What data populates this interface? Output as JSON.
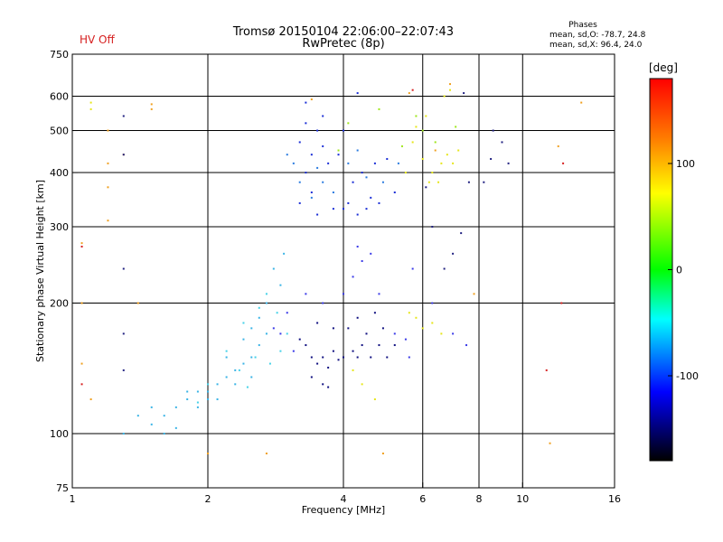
{
  "header": {
    "status_text": "HV Off",
    "title_line1": "Tromsø 20150104 22:06:00–22:07:43",
    "title_line2": "RwPretec (8p)",
    "phases": {
      "title": "Phases",
      "line_o": "mean, sd,O: -78.7, 24.8",
      "line_x": "mean, sd,X:  96.4, 24.0"
    }
  },
  "colors": {
    "status_text": "#d62020",
    "grid": "#000000",
    "colorbar": [
      "#ff0000",
      "#ffa500",
      "#ffff00",
      "#00ff00",
      "#00ffff",
      "#0000ff",
      "#000000"
    ]
  },
  "chart_data": {
    "type": "scatter",
    "xlabel": "Frequency [MHz]",
    "ylabel": "Stationary phase Virtual Height [km]",
    "x_scale": "log",
    "y_scale": "log",
    "xlim": [
      1,
      16
    ],
    "ylim": [
      75,
      750
    ],
    "x_ticks": [
      1,
      2,
      4,
      6,
      8,
      10,
      16
    ],
    "y_ticks": [
      75,
      100,
      200,
      300,
      400,
      500,
      600,
      750
    ],
    "grid": true,
    "colorbar": {
      "unit": "[deg]",
      "range": [
        -180,
        180
      ],
      "ticks": [
        100,
        0,
        -100
      ]
    },
    "series": [
      {
        "color": "#1a2ed6",
        "points": [
          [
            3.2,
            470
          ],
          [
            3.3,
            520
          ],
          [
            3.4,
            440
          ],
          [
            3.5,
            500
          ],
          [
            3.3,
            400
          ],
          [
            3.6,
            460
          ],
          [
            3.4,
            360
          ],
          [
            3.7,
            420
          ],
          [
            3.2,
            340
          ],
          [
            3.5,
            320
          ],
          [
            3.8,
            330
          ],
          [
            4.0,
            500
          ],
          [
            4.1,
            340
          ],
          [
            4.3,
            320
          ],
          [
            4.5,
            330
          ],
          [
            4.2,
            380
          ],
          [
            4.6,
            350
          ],
          [
            4.8,
            340
          ],
          [
            4.4,
            400
          ],
          [
            4.0,
            330
          ],
          [
            3.9,
            440
          ],
          [
            5.0,
            430
          ],
          [
            5.2,
            360
          ],
          [
            4.7,
            420
          ],
          [
            3.3,
            580
          ],
          [
            3.6,
            540
          ],
          [
            4.3,
            610
          ]
        ]
      },
      {
        "color": "#2a7be0",
        "points": [
          [
            3.1,
            420
          ],
          [
            3.2,
            380
          ],
          [
            3.4,
            350
          ],
          [
            3.6,
            380
          ],
          [
            3.8,
            360
          ],
          [
            4.1,
            420
          ],
          [
            4.3,
            450
          ],
          [
            4.5,
            390
          ],
          [
            4.9,
            380
          ],
          [
            5.3,
            420
          ],
          [
            3.0,
            440
          ],
          [
            3.5,
            410
          ]
        ]
      },
      {
        "color": "#101080",
        "points": [
          [
            3.3,
            160
          ],
          [
            3.4,
            150
          ],
          [
            3.5,
            145
          ],
          [
            3.6,
            150
          ],
          [
            3.7,
            142
          ],
          [
            3.8,
            155
          ],
          [
            3.4,
            135
          ],
          [
            3.6,
            130
          ],
          [
            3.7,
            128
          ],
          [
            3.2,
            165
          ],
          [
            3.9,
            148
          ],
          [
            4.0,
            150
          ],
          [
            4.2,
            155
          ],
          [
            4.3,
            150
          ],
          [
            4.4,
            160
          ],
          [
            4.6,
            150
          ],
          [
            4.8,
            160
          ],
          [
            5.0,
            150
          ],
          [
            5.2,
            160
          ],
          [
            4.1,
            175
          ],
          [
            4.5,
            170
          ],
          [
            4.3,
            185
          ],
          [
            4.7,
            190
          ],
          [
            4.9,
            175
          ],
          [
            3.8,
            175
          ],
          [
            3.5,
            180
          ]
        ]
      },
      {
        "color": "#3a3ae8",
        "points": [
          [
            3.3,
            210
          ],
          [
            3.6,
            200
          ],
          [
            4.0,
            210
          ],
          [
            4.2,
            230
          ],
          [
            4.4,
            250
          ],
          [
            4.6,
            260
          ],
          [
            4.8,
            210
          ],
          [
            5.2,
            170
          ],
          [
            5.5,
            165
          ],
          [
            5.6,
            150
          ],
          [
            4.3,
            270
          ],
          [
            5.7,
            240
          ],
          [
            6.3,
            200
          ],
          [
            7.0,
            170
          ],
          [
            7.5,
            160
          ],
          [
            2.8,
            175
          ],
          [
            3.1,
            155
          ],
          [
            3.0,
            190
          ],
          [
            2.9,
            170
          ]
        ]
      },
      {
        "color": "#3ab4e6",
        "points": [
          [
            1.5,
            105
          ],
          [
            1.6,
            110
          ],
          [
            1.7,
            115
          ],
          [
            1.8,
            120
          ],
          [
            1.9,
            115
          ],
          [
            2.0,
            125
          ],
          [
            2.1,
            130
          ],
          [
            2.2,
            135
          ],
          [
            2.3,
            140
          ],
          [
            2.4,
            145
          ],
          [
            2.5,
            150
          ],
          [
            2.6,
            160
          ],
          [
            2.7,
            170
          ],
          [
            2.2,
            150
          ],
          [
            2.4,
            165
          ],
          [
            2.6,
            185
          ],
          [
            2.7,
            200
          ],
          [
            2.9,
            220
          ],
          [
            2.5,
            175
          ],
          [
            2.3,
            130
          ],
          [
            2.0,
            120
          ],
          [
            1.8,
            125
          ],
          [
            1.6,
            100
          ],
          [
            1.7,
            103
          ],
          [
            1.3,
            100
          ],
          [
            1.4,
            110
          ],
          [
            1.5,
            115
          ],
          [
            1.9,
            125
          ],
          [
            2.1,
            120
          ],
          [
            2.8,
            240
          ],
          [
            2.95,
            260
          ],
          [
            2.5,
            135
          ]
        ]
      },
      {
        "color": "#46d2e8",
        "points": [
          [
            2.2,
            155
          ],
          [
            2.4,
            180
          ],
          [
            2.6,
            195
          ],
          [
            2.7,
            210
          ],
          [
            2.35,
            140
          ],
          [
            2.55,
            150
          ],
          [
            2.75,
            145
          ],
          [
            2.9,
            155
          ],
          [
            3.0,
            170
          ],
          [
            2.0,
            130
          ],
          [
            1.9,
            118
          ],
          [
            2.45,
            128
          ],
          [
            2.85,
            190
          ]
        ]
      },
      {
        "color": "#e6e61a",
        "points": [
          [
            5.6,
            190
          ],
          [
            5.8,
            185
          ],
          [
            6.0,
            175
          ],
          [
            6.3,
            180
          ],
          [
            6.6,
            170
          ],
          [
            6.0,
            430
          ],
          [
            6.3,
            400
          ],
          [
            6.6,
            420
          ],
          [
            6.8,
            440
          ],
          [
            7.0,
            420
          ],
          [
            6.5,
            380
          ],
          [
            6.2,
            380
          ],
          [
            6.9,
            620
          ],
          [
            6.7,
            600
          ],
          [
            5.8,
            510
          ],
          [
            6.1,
            540
          ],
          [
            5.7,
            470
          ],
          [
            7.2,
            450
          ],
          [
            5.5,
            400
          ],
          [
            1.1,
            580
          ],
          [
            1.1,
            560
          ],
          [
            4.7,
            120
          ],
          [
            4.4,
            130
          ],
          [
            4.2,
            140
          ]
        ]
      },
      {
        "color": "#9ee61a",
        "points": [
          [
            5.8,
            540
          ],
          [
            6.0,
            500
          ],
          [
            5.4,
            460
          ],
          [
            4.8,
            560
          ],
          [
            6.4,
            470
          ],
          [
            7.1,
            510
          ],
          [
            4.1,
            520
          ],
          [
            3.9,
            450
          ]
        ]
      },
      {
        "color": "#f0a020",
        "points": [
          [
            1.05,
            200
          ],
          [
            1.1,
            120
          ],
          [
            1.05,
            145
          ],
          [
            1.2,
            420
          ],
          [
            1.2,
            500
          ],
          [
            1.5,
            560
          ],
          [
            1.5,
            575
          ],
          [
            1.4,
            200
          ],
          [
            2.0,
            90
          ],
          [
            2.7,
            90
          ],
          [
            4.9,
            90
          ],
          [
            11.5,
            95
          ],
          [
            12.0,
            460
          ],
          [
            13.5,
            580
          ],
          [
            1.05,
            275
          ],
          [
            1.2,
            310
          ],
          [
            1.2,
            370
          ],
          [
            6.9,
            640
          ],
          [
            5.6,
            610
          ],
          [
            3.4,
            590
          ],
          [
            1.3,
            440
          ],
          [
            6.4,
            450
          ],
          [
            7.8,
            210
          ]
        ]
      },
      {
        "color": "#202080",
        "points": [
          [
            1.3,
            540
          ],
          [
            1.3,
            440
          ],
          [
            1.3,
            240
          ],
          [
            1.3,
            170
          ],
          [
            1.3,
            140
          ],
          [
            7.4,
            610
          ],
          [
            7.6,
            380
          ],
          [
            8.2,
            380
          ],
          [
            8.5,
            430
          ],
          [
            9.0,
            470
          ],
          [
            9.3,
            420
          ],
          [
            8.6,
            500
          ],
          [
            6.1,
            370
          ],
          [
            7.0,
            260
          ],
          [
            7.3,
            290
          ],
          [
            6.7,
            240
          ],
          [
            6.3,
            300
          ]
        ]
      },
      {
        "color": "#d62020",
        "points": [
          [
            12.2,
            200
          ],
          [
            11.3,
            140
          ],
          [
            12.3,
            420
          ],
          [
            1.05,
            270
          ],
          [
            1.05,
            130
          ],
          [
            5.7,
            620
          ]
        ]
      }
    ]
  }
}
